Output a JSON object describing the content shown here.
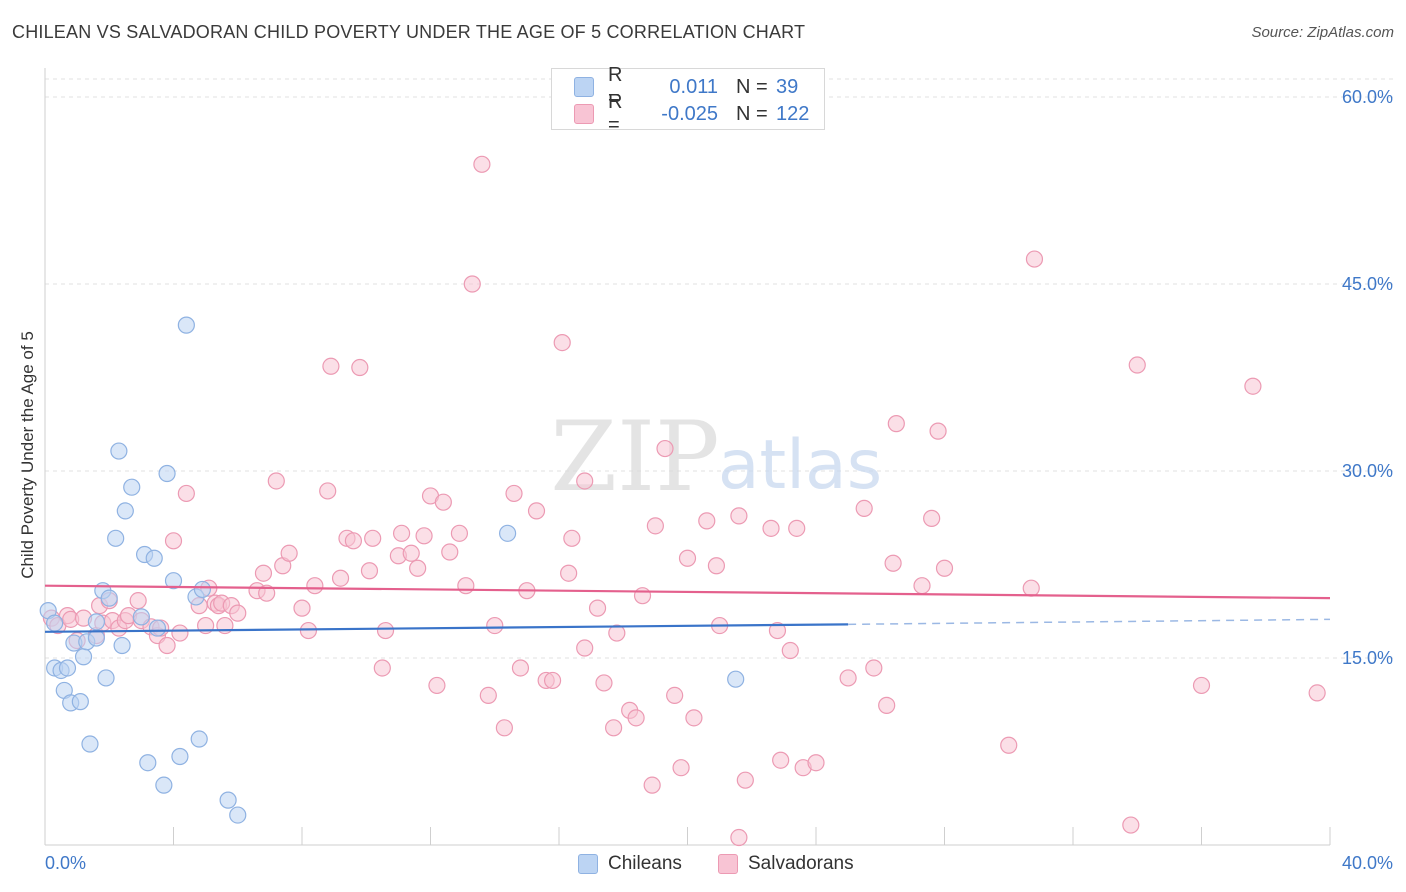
{
  "header": {
    "title": "CHILEAN VS SALVADORAN CHILD POVERTY UNDER THE AGE OF 5 CORRELATION CHART",
    "source": "Source: ZipAtlas.com"
  },
  "watermark": {
    "zip": "ZIP",
    "atlas": "atlas"
  },
  "legend_top": {
    "rows": [
      {
        "r_label": "R =",
        "r_value": "0.011",
        "n_label": "N =",
        "n_value": "39",
        "swatch_fill": "#bcd4f3",
        "swatch_border": "#8fb2e2"
      },
      {
        "r_label": "R =",
        "r_value": "-0.025",
        "n_label": "N =",
        "n_value": "122",
        "swatch_fill": "#f8c4d4",
        "swatch_border": "#ec9ab3"
      }
    ]
  },
  "legend_bottom": [
    {
      "label": "Chileans",
      "swatch_fill": "#bcd4f3",
      "swatch_border": "#8fb2e2"
    },
    {
      "label": "Salvadorans",
      "swatch_fill": "#f8c4d4",
      "swatch_border": "#ec9ab3"
    }
  ],
  "chart_data": {
    "type": "scatter",
    "title": "CHILEAN VS SALVADORAN CHILD POVERTY UNDER THE AGE OF 5 CORRELATION CHART",
    "xlabel": "",
    "ylabel": "Child Poverty Under the Age of 5",
    "xlim": [
      0,
      40
    ],
    "ylim": [
      0,
      60
    ],
    "x_tick_labels": [
      "0.0%",
      "40.0%"
    ],
    "y_ticks": [
      15,
      30,
      45,
      60
    ],
    "y_tick_labels": [
      "15.0%",
      "30.0%",
      "45.0%",
      "60.0%"
    ],
    "grid": true,
    "legend_position": "top-center",
    "colors": {
      "chileans": "#3a74c9",
      "salvadorans": "#e4608d",
      "tick_label": "#3f78c8"
    },
    "series": [
      {
        "name": "Chileans",
        "color": "#8fb2e2",
        "fill": "#bcd4f3",
        "points": [
          [
            0.1,
            18.8
          ],
          [
            0.3,
            17.8
          ],
          [
            0.3,
            14.2
          ],
          [
            0.5,
            14.0
          ],
          [
            0.6,
            12.4
          ],
          [
            0.7,
            14.2
          ],
          [
            0.8,
            11.4
          ],
          [
            0.9,
            16.2
          ],
          [
            1.1,
            11.5
          ],
          [
            1.2,
            15.1
          ],
          [
            1.3,
            16.3
          ],
          [
            1.4,
            8.1
          ],
          [
            1.6,
            16.6
          ],
          [
            1.6,
            17.9
          ],
          [
            1.8,
            20.4
          ],
          [
            1.9,
            13.4
          ],
          [
            2.0,
            19.8
          ],
          [
            2.2,
            24.6
          ],
          [
            2.3,
            31.6
          ],
          [
            2.4,
            16.0
          ],
          [
            2.5,
            26.8
          ],
          [
            2.7,
            28.7
          ],
          [
            3.0,
            18.3
          ],
          [
            3.1,
            23.3
          ],
          [
            3.2,
            6.6
          ],
          [
            3.4,
            23.0
          ],
          [
            3.5,
            17.4
          ],
          [
            3.7,
            4.8
          ],
          [
            3.8,
            29.8
          ],
          [
            4.0,
            21.2
          ],
          [
            4.2,
            7.1
          ],
          [
            4.4,
            41.7
          ],
          [
            4.7,
            19.9
          ],
          [
            4.8,
            8.5
          ],
          [
            4.9,
            20.5
          ],
          [
            5.7,
            3.6
          ],
          [
            6.0,
            2.4
          ],
          [
            14.4,
            25.0
          ],
          [
            21.5,
            13.3
          ]
        ]
      },
      {
        "name": "Salvadorans",
        "color": "#ec9ab3",
        "fill": "#f8c4d4",
        "points": [
          [
            0.2,
            18.2
          ],
          [
            0.4,
            17.6
          ],
          [
            0.7,
            18.4
          ],
          [
            0.8,
            18.1
          ],
          [
            1.0,
            16.4
          ],
          [
            1.2,
            18.2
          ],
          [
            1.6,
            16.8
          ],
          [
            1.7,
            19.2
          ],
          [
            1.8,
            17.8
          ],
          [
            2.0,
            19.6
          ],
          [
            2.1,
            18.0
          ],
          [
            2.3,
            17.4
          ],
          [
            2.5,
            18.0
          ],
          [
            2.6,
            18.4
          ],
          [
            2.9,
            19.6
          ],
          [
            3.0,
            18.0
          ],
          [
            3.3,
            17.5
          ],
          [
            3.5,
            16.8
          ],
          [
            3.6,
            17.4
          ],
          [
            3.8,
            16.0
          ],
          [
            4.0,
            24.4
          ],
          [
            4.2,
            17.0
          ],
          [
            4.4,
            28.2
          ],
          [
            4.8,
            19.2
          ],
          [
            5.0,
            17.6
          ],
          [
            5.1,
            20.6
          ],
          [
            5.3,
            19.4
          ],
          [
            5.4,
            19.2
          ],
          [
            5.5,
            19.4
          ],
          [
            5.6,
            17.6
          ],
          [
            5.8,
            19.2
          ],
          [
            6.0,
            18.6
          ],
          [
            6.6,
            20.4
          ],
          [
            6.8,
            21.8
          ],
          [
            6.9,
            20.2
          ],
          [
            7.2,
            29.2
          ],
          [
            7.4,
            22.4
          ],
          [
            7.6,
            23.4
          ],
          [
            8.0,
            19.0
          ],
          [
            8.2,
            17.2
          ],
          [
            8.4,
            20.8
          ],
          [
            8.8,
            28.4
          ],
          [
            8.9,
            38.4
          ],
          [
            9.2,
            21.4
          ],
          [
            9.4,
            24.6
          ],
          [
            9.6,
            24.4
          ],
          [
            9.8,
            38.3
          ],
          [
            10.1,
            22.0
          ],
          [
            10.2,
            24.6
          ],
          [
            10.5,
            14.2
          ],
          [
            10.6,
            17.2
          ],
          [
            11.0,
            23.2
          ],
          [
            11.1,
            25.0
          ],
          [
            11.4,
            23.4
          ],
          [
            11.6,
            22.2
          ],
          [
            11.8,
            24.8
          ],
          [
            12.0,
            28.0
          ],
          [
            12.2,
            12.8
          ],
          [
            12.4,
            27.5
          ],
          [
            12.6,
            23.5
          ],
          [
            12.9,
            25.0
          ],
          [
            13.1,
            20.8
          ],
          [
            13.3,
            45.0
          ],
          [
            13.6,
            54.6
          ],
          [
            13.8,
            12.0
          ],
          [
            14.0,
            17.6
          ],
          [
            14.3,
            9.4
          ],
          [
            14.6,
            28.2
          ],
          [
            14.8,
            14.2
          ],
          [
            15.0,
            20.4
          ],
          [
            15.3,
            26.8
          ],
          [
            15.6,
            13.2
          ],
          [
            15.8,
            13.2
          ],
          [
            16.1,
            40.3
          ],
          [
            16.3,
            21.8
          ],
          [
            16.4,
            24.6
          ],
          [
            16.8,
            29.2
          ],
          [
            16.8,
            15.8
          ],
          [
            17.2,
            19.0
          ],
          [
            17.4,
            13.0
          ],
          [
            17.7,
            9.4
          ],
          [
            17.8,
            17.0
          ],
          [
            18.2,
            10.8
          ],
          [
            18.4,
            10.2
          ],
          [
            18.6,
            20.0
          ],
          [
            18.9,
            4.8
          ],
          [
            19.0,
            25.6
          ],
          [
            19.3,
            31.8
          ],
          [
            19.6,
            12.0
          ],
          [
            19.8,
            6.2
          ],
          [
            20.0,
            23.0
          ],
          [
            20.2,
            10.2
          ],
          [
            20.6,
            26.0
          ],
          [
            20.9,
            22.4
          ],
          [
            21.0,
            17.6
          ],
          [
            21.6,
            26.4
          ],
          [
            21.8,
            5.2
          ],
          [
            21.6,
            0.6
          ],
          [
            22.6,
            25.4
          ],
          [
            22.8,
            17.2
          ],
          [
            22.9,
            6.8
          ],
          [
            23.2,
            15.6
          ],
          [
            23.4,
            25.4
          ],
          [
            23.6,
            6.2
          ],
          [
            24.0,
            6.6
          ],
          [
            25.0,
            13.4
          ],
          [
            25.5,
            27.0
          ],
          [
            25.8,
            14.2
          ],
          [
            26.2,
            11.2
          ],
          [
            26.4,
            22.6
          ],
          [
            26.5,
            33.8
          ],
          [
            27.3,
            20.8
          ],
          [
            27.6,
            26.2
          ],
          [
            27.8,
            33.2
          ],
          [
            28.0,
            22.2
          ],
          [
            30.0,
            8.0
          ],
          [
            30.7,
            20.6
          ],
          [
            30.8,
            47.0
          ],
          [
            33.8,
            1.6
          ],
          [
            34.0,
            38.5
          ],
          [
            36.0,
            12.8
          ],
          [
            37.6,
            36.8
          ],
          [
            39.6,
            12.2
          ]
        ]
      }
    ],
    "trend_lines": [
      {
        "series": "Chileans",
        "x": [
          0,
          25
        ],
        "y": [
          17.1,
          17.7
        ],
        "dashed_extension_to_x": 40,
        "dashed_extension_y": 18.1
      },
      {
        "series": "Salvadorans",
        "x": [
          0,
          40
        ],
        "y": [
          20.8,
          19.8
        ]
      }
    ]
  }
}
